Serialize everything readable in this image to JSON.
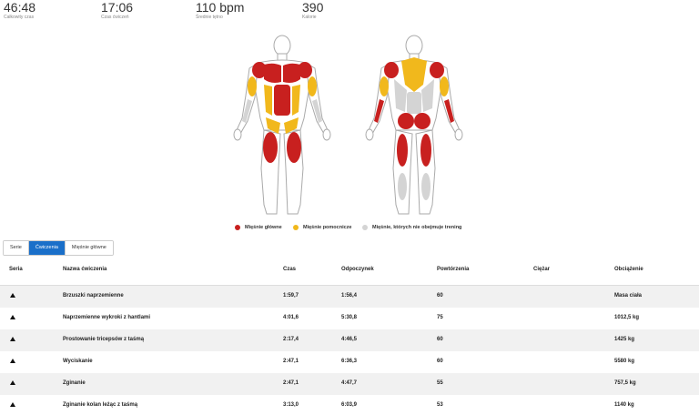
{
  "stats": [
    {
      "value": "46:48",
      "label": "Całkowity czas"
    },
    {
      "value": "17:06",
      "label": "Czas ćwiczeń"
    },
    {
      "value": "110 bpm",
      "label": "Średnie tętno"
    },
    {
      "value": "390",
      "label": "Kalorie"
    }
  ],
  "colors": {
    "primary": "#c8201f",
    "secondary": "#f1b81c",
    "inactive": "#d4d4d4",
    "accent": "#1a6fc9"
  },
  "legend": [
    {
      "label": "Mięśnie główne",
      "color": "#c8201f"
    },
    {
      "label": "Mięśnie pomocnicze",
      "color": "#f1b81c"
    },
    {
      "label": "Mięśnie, których nie obejmuje trening",
      "color": "#d4d4d4"
    }
  ],
  "tabs": [
    {
      "label": "Serie",
      "active": false
    },
    {
      "label": "Ćwiczenia",
      "active": true
    },
    {
      "label": "Mięśnie główne",
      "active": false
    }
  ],
  "table": {
    "headers": {
      "seria": "Seria",
      "name": "Nazwa ćwiczenia",
      "czas": "Czas",
      "odpoczynek": "Odpoczynek",
      "powtorzenia": "Powtórzenia",
      "ciezar": "Ciężar",
      "obciazenie": "Obciążenie"
    },
    "rows": [
      {
        "name": "Brzuszki naprzemienne",
        "czas": "1:59,7",
        "odpoczynek": "1:56,4",
        "powtorzenia": "60",
        "obciazenie": "Masa ciała"
      },
      {
        "name": "Naprzemienne wykroki z hantlami",
        "czas": "4:01,6",
        "odpoczynek": "5:30,8",
        "powtorzenia": "75",
        "obciazenie": "1012,5 kg"
      },
      {
        "name": "Prostowanie tricepsów z taśmą",
        "czas": "2:17,4",
        "odpoczynek": "4:46,5",
        "powtorzenia": "60",
        "obciazenie": "1425 kg"
      },
      {
        "name": "Wyciskanie",
        "czas": "2:47,1",
        "odpoczynek": "6:36,3",
        "powtorzenia": "60",
        "obciazenie": "5580 kg"
      },
      {
        "name": "Zginanie",
        "czas": "2:47,1",
        "odpoczynek": "4:47,7",
        "powtorzenia": "55",
        "obciazenie": "757,5 kg"
      },
      {
        "name": "Zginanie kolan leżąc z taśmą",
        "czas": "3:13,0",
        "odpoczynek": "6:03,9",
        "powtorzenia": "53",
        "obciazenie": "1140 kg"
      }
    ]
  }
}
